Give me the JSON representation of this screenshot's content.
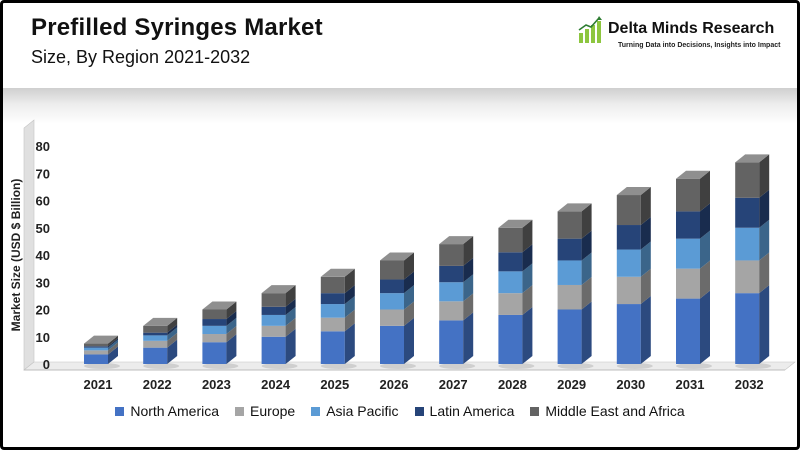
{
  "header": {
    "title": "Prefilled Syringes Market",
    "subtitle": "Size, By Region 2021-2032"
  },
  "logo": {
    "name": "Delta Minds Research",
    "tagline": "Turning Data into Decisions, Insights into Impact",
    "icon": "bar-growth-icon",
    "colors": [
      "#8dc63f",
      "#1a1a1a"
    ]
  },
  "chart_data": {
    "type": "bar",
    "stacked": true,
    "style": "3d",
    "categories": [
      "2021",
      "2022",
      "2023",
      "2024",
      "2025",
      "2026",
      "2027",
      "2028",
      "2029",
      "2030",
      "2031",
      "2032"
    ],
    "ylabel": "Market Size (USD $ Billion)",
    "ylim": [
      0,
      80
    ],
    "yticks": [
      0,
      10,
      20,
      30,
      40,
      50,
      60,
      70,
      80
    ],
    "grid": false,
    "legend_position": "bottom",
    "series": [
      {
        "name": "North America",
        "color": "#4472c4",
        "values": [
          3.5,
          6,
          8,
          10,
          12,
          14,
          16,
          18,
          20,
          22,
          24,
          26
        ]
      },
      {
        "name": "Europe",
        "color": "#a5a5a5",
        "values": [
          1.5,
          2.5,
          3,
          4,
          5,
          6,
          7,
          8,
          9,
          10,
          11,
          12
        ]
      },
      {
        "name": "Asia Pacific",
        "color": "#5b9bd5",
        "values": [
          1,
          2,
          3,
          4,
          5,
          6,
          7,
          8,
          9,
          10,
          11,
          12
        ]
      },
      {
        "name": "Latin America",
        "color": "#264478",
        "values": [
          0.5,
          1,
          2.5,
          3,
          4,
          5,
          6,
          7,
          8,
          9,
          10,
          11
        ]
      },
      {
        "name": "Middle East and Africa",
        "color": "#636363",
        "values": [
          1,
          2.5,
          3.5,
          5,
          6,
          7,
          8,
          9,
          10,
          11,
          12,
          13
        ]
      }
    ]
  }
}
